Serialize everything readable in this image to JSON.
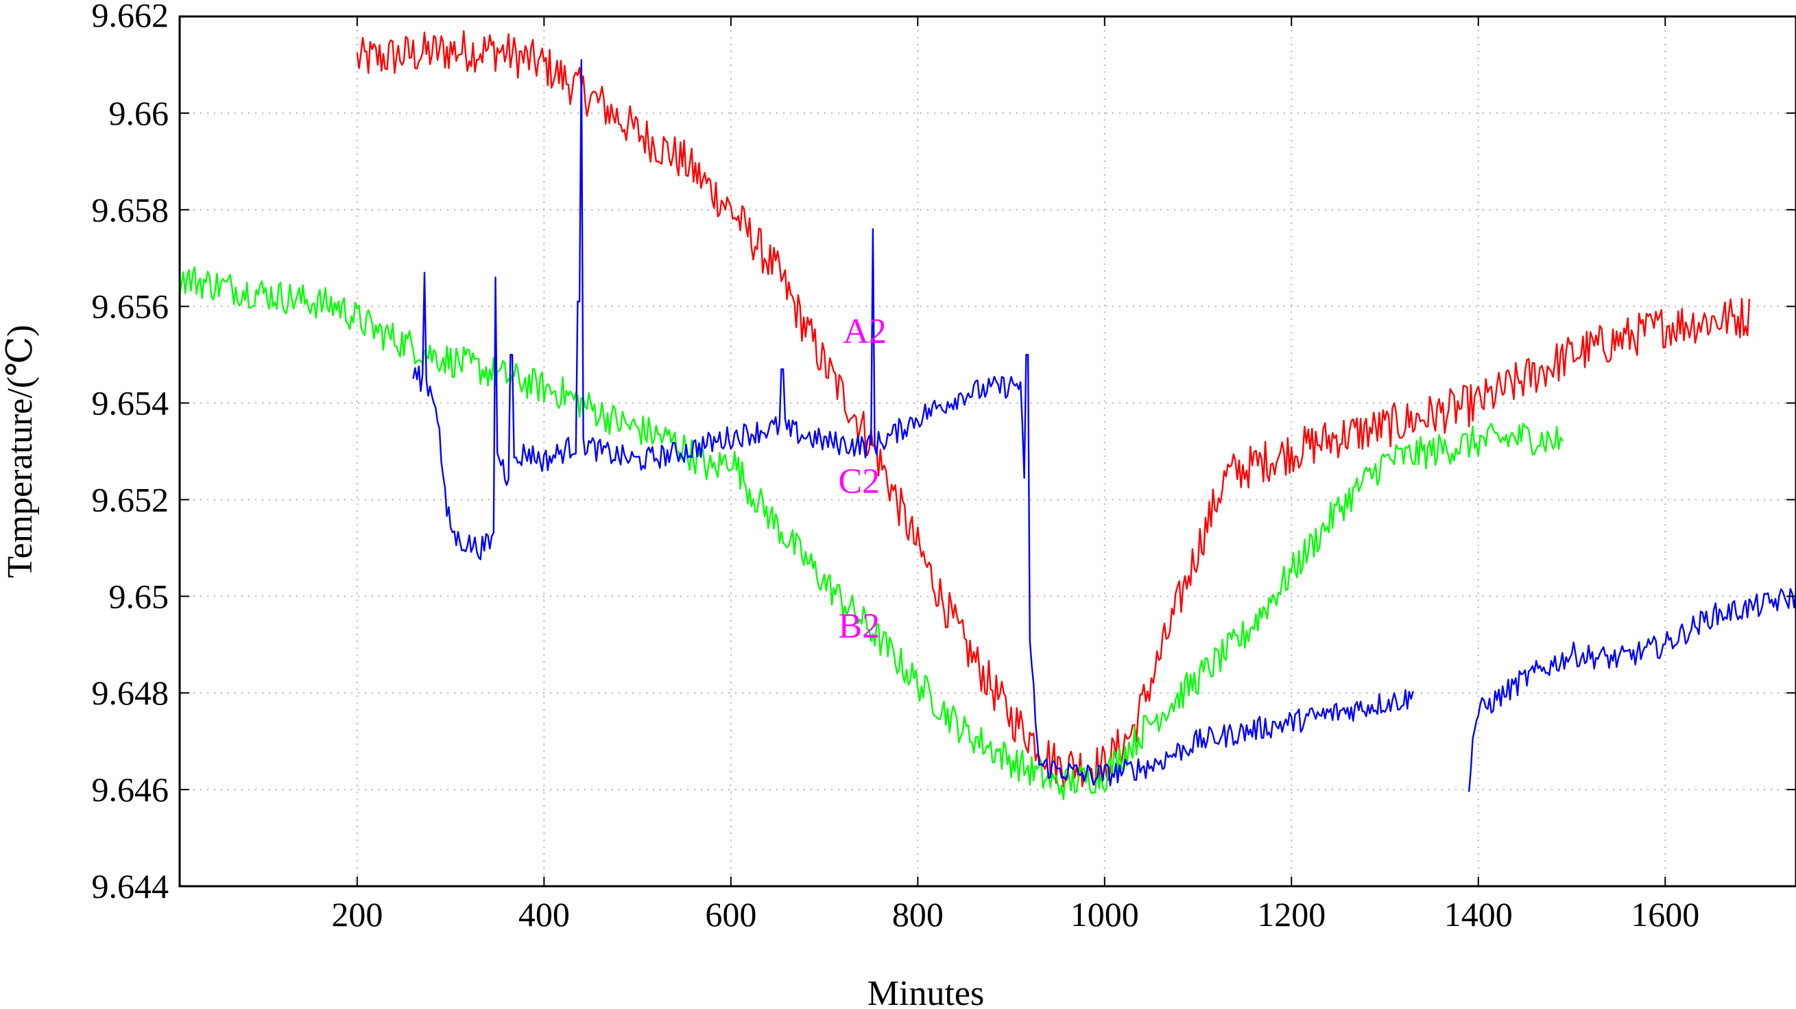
{
  "chart_data": {
    "type": "line",
    "title": "",
    "xlabel": "Minutes",
    "ylabel": "Temperature/(℃)",
    "xlim": [
      10,
      1740
    ],
    "ylim": [
      9.644,
      9.662
    ],
    "grid": true,
    "legend": "none",
    "x_ticks": [
      {
        "value": 200,
        "label": "200"
      },
      {
        "value": 400,
        "label": "400"
      },
      {
        "value": 600,
        "label": "600"
      },
      {
        "value": 800,
        "label": "800"
      },
      {
        "value": 1000,
        "label": "1000"
      },
      {
        "value": 1200,
        "label": "1200"
      },
      {
        "value": 1400,
        "label": "1400"
      },
      {
        "value": 1600,
        "label": "1600"
      }
    ],
    "y_ticks": [
      {
        "value": 9.644,
        "label": "9.644"
      },
      {
        "value": 9.646,
        "label": "9.646"
      },
      {
        "value": 9.648,
        "label": "9.648"
      },
      {
        "value": 9.65,
        "label": "9.65"
      },
      {
        "value": 9.652,
        "label": "9.652"
      },
      {
        "value": 9.654,
        "label": "9.654"
      },
      {
        "value": 9.656,
        "label": "9.656"
      },
      {
        "value": 9.658,
        "label": "9.658"
      },
      {
        "value": 9.66,
        "label": "9.66"
      },
      {
        "value": 9.662,
        "label": "9.662"
      }
    ],
    "annotations": [
      {
        "text": "A2",
        "x": 720,
        "y": 9.6555,
        "color": "#ff00ff"
      },
      {
        "text": "C2",
        "x": 715,
        "y": 9.6524,
        "color": "#ff00ff"
      },
      {
        "text": "B2",
        "x": 715,
        "y": 9.6494,
        "color": "#ff00ff"
      }
    ],
    "series": [
      {
        "color": "#ff0000",
        "noise": 0.00045,
        "segments": [
          [
            [
              200,
              9.6611
            ],
            [
              250,
              9.6612
            ],
            [
              300,
              9.6613
            ],
            [
              350,
              9.6613
            ],
            [
              400,
              9.661
            ],
            [
              430,
              9.6606
            ],
            [
              460,
              9.6602
            ],
            [
              500,
              9.6596
            ],
            [
              550,
              9.659
            ],
            [
              600,
              9.658
            ],
            [
              650,
              9.6567
            ],
            [
              700,
              9.6548
            ],
            [
              750,
              9.6532
            ],
            [
              800,
              9.651
            ],
            [
              850,
              9.649
            ],
            [
              900,
              9.6475
            ],
            [
              950,
              9.6465
            ],
            [
              1000,
              9.6465
            ],
            [
              1030,
              9.6472
            ],
            [
              1060,
              9.6488
            ],
            [
              1100,
              9.651
            ],
            [
              1130,
              9.6525
            ],
            [
              1200,
              9.653
            ],
            [
              1250,
              9.6533
            ],
            [
              1300,
              9.6535
            ],
            [
              1400,
              9.654
            ],
            [
              1500,
              9.655
            ],
            [
              1600,
              9.6556
            ],
            [
              1690,
              9.6558
            ]
          ]
        ]
      },
      {
        "color": "#00ff00",
        "noise": 0.00035,
        "segments": [
          [
            [
              10,
              9.6566
            ],
            [
              60,
              9.6564
            ],
            [
              120,
              9.6562
            ],
            [
              180,
              9.656
            ],
            [
              220,
              9.6555
            ],
            [
              280,
              9.655
            ],
            [
              350,
              9.6546
            ],
            [
              420,
              9.6542
            ],
            [
              480,
              9.6536
            ],
            [
              540,
              9.6532
            ],
            [
              580,
              9.6526
            ],
            [
              600,
              9.6529
            ],
            [
              620,
              9.6522
            ],
            [
              660,
              9.6512
            ],
            [
              700,
              9.6503
            ],
            [
              750,
              9.6493
            ],
            [
              800,
              9.6482
            ],
            [
              850,
              9.6472
            ],
            [
              900,
              9.6466
            ],
            [
              950,
              9.6461
            ],
            [
              1000,
              9.6463
            ],
            [
              1050,
              9.6474
            ],
            [
              1100,
              9.6483
            ],
            [
              1150,
              9.6492
            ],
            [
              1200,
              9.6505
            ],
            [
              1250,
              9.6518
            ],
            [
              1300,
              9.6528
            ],
            [
              1350,
              9.653
            ],
            [
              1400,
              9.6532
            ],
            [
              1450,
              9.6533
            ],
            [
              1490,
              9.6532
            ]
          ]
        ]
      },
      {
        "color": "#0000ff",
        "noise": 0.00025,
        "segments": [
          [
            [
              260,
              9.6546
            ],
            [
              275,
              9.6544
            ],
            [
              285,
              9.654
            ],
            [
              295,
              9.6518
            ],
            [
              305,
              9.6512
            ],
            [
              330,
              9.651
            ],
            [
              345,
              9.6511
            ],
            [
              350,
              9.653
            ],
            [
              360,
              9.6525
            ],
            [
              380,
              9.653
            ],
            [
              400,
              9.6528
            ],
            [
              420,
              9.653
            ],
            [
              440,
              9.6532
            ],
            [
              460,
              9.653
            ],
            [
              500,
              9.6528
            ],
            [
              550,
              9.653
            ],
            [
              600,
              9.6533
            ],
            [
              650,
              9.6535
            ],
            [
              700,
              9.6532
            ],
            [
              750,
              9.6531
            ],
            [
              770,
              9.6533
            ],
            [
              800,
              9.6537
            ],
            [
              850,
              9.6542
            ],
            [
              910,
              9.6544
            ],
            [
              920,
              9.649
            ],
            [
              930,
              9.6465
            ],
            [
              980,
              9.6463
            ],
            [
              1000,
              9.6463
            ],
            [
              1050,
              9.6465
            ],
            [
              1100,
              9.647
            ],
            [
              1150,
              9.6472
            ],
            [
              1200,
              9.6474
            ],
            [
              1250,
              9.6476
            ],
            [
              1300,
              9.6478
            ],
            [
              1330,
              9.6479
            ]
          ],
          [
            [
              1390,
              9.6462
            ],
            [
              1395,
              9.6472
            ],
            [
              1400,
              9.6476
            ],
            [
              1450,
              9.6483
            ],
            [
              1500,
              9.6488
            ],
            [
              1550,
              9.6487
            ],
            [
              1600,
              9.649
            ],
            [
              1650,
              9.6496
            ],
            [
              1700,
              9.6498
            ],
            [
              1740,
              9.65
            ]
          ]
        ],
        "spikes": [
          [
            272,
            9.6567
          ],
          [
            348,
            9.6566
          ],
          [
            365,
            9.655
          ],
          [
            440,
            9.6611
          ],
          [
            437,
            9.6561
          ],
          [
            655,
            9.6547
          ],
          [
            752,
            9.6576
          ],
          [
            917,
            9.655
          ]
        ]
      }
    ]
  }
}
